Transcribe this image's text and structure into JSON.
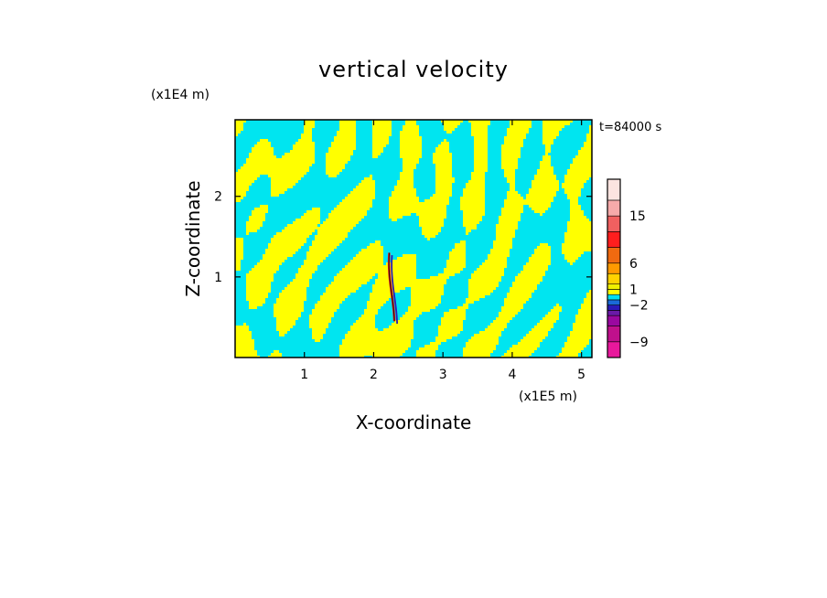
{
  "chart_data": {
    "type": "heatmap",
    "title": "vertical velocity",
    "time_label": "t=84000 s",
    "xlabel": "X-coordinate",
    "ylabel": "Z-coordinate",
    "x_unit": "(x1E5 m)",
    "y_unit": "(x1E4 m)",
    "xlim": [
      0,
      5.15
    ],
    "ylim": [
      0,
      2.95
    ],
    "xticks": [
      1,
      2,
      3,
      4,
      5
    ],
    "yticks": [
      1,
      2
    ],
    "colorbar": {
      "ticks": [
        {
          "label": "15",
          "value": 15
        },
        {
          "label": "6",
          "value": 6
        },
        {
          "label": "1",
          "value": 1
        },
        {
          "label": "−2",
          "value": -2
        },
        {
          "label": "−9",
          "value": -9
        }
      ],
      "bands": [
        {
          "lo": -12,
          "hi": -9,
          "color": "#e8189c"
        },
        {
          "lo": -9,
          "hi": -6,
          "color": "#c0108c"
        },
        {
          "lo": -6,
          "hi": -4,
          "color": "#9a08a0"
        },
        {
          "lo": -4,
          "hi": -3,
          "color": "#6a1aa8"
        },
        {
          "lo": -3,
          "hi": -2,
          "color": "#2a1ab8"
        },
        {
          "lo": -2,
          "hi": -1,
          "color": "#1a6ad8"
        },
        {
          "lo": -1,
          "hi": 0,
          "color": "#00e0f0"
        },
        {
          "lo": 0,
          "hi": 1,
          "color": "#ffff00"
        },
        {
          "lo": 1,
          "hi": 2,
          "color": "#f0f000"
        },
        {
          "lo": 2,
          "hi": 4,
          "color": "#ffd200"
        },
        {
          "lo": 4,
          "hi": 6,
          "color": "#ff9a00"
        },
        {
          "lo": 6,
          "hi": 9,
          "color": "#f06a10"
        },
        {
          "lo": 9,
          "hi": 12,
          "color": "#ff1e1e"
        },
        {
          "lo": 12,
          "hi": 15,
          "color": "#f06060"
        },
        {
          "lo": 15,
          "hi": 18,
          "color": "#f6aaaa"
        },
        {
          "lo": 18,
          "hi": 22,
          "color": "#fce4e0"
        }
      ]
    },
    "field_colors": {
      "upward": "#ffff00",
      "downward": "#00e5f0",
      "strong_up": "#e02020",
      "strong_down": "#2a1ab8"
    }
  }
}
